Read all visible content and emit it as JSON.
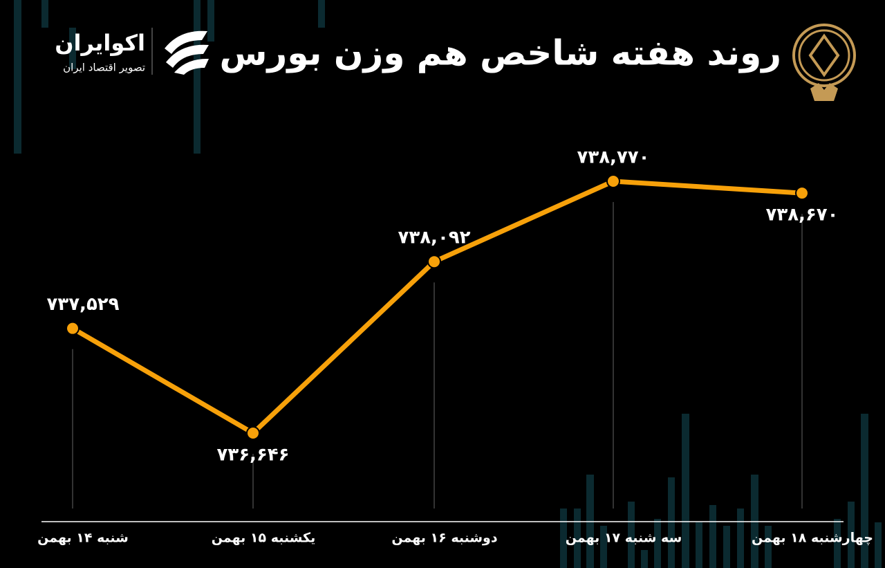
{
  "header": {
    "title": "روند هفته شاخص هم وزن بورس",
    "brand": "اکوایران",
    "tagline": "تصویر اقتصاد ایران"
  },
  "chart_data": {
    "type": "line",
    "categories": [
      "شنبه ۱۴ بهمن",
      "یکشنبه ۱۵ بهمن",
      "دوشنبه ۱۶ بهمن",
      "سه شنبه ۱۷ بهمن",
      "چهارشنبه ۱۸ بهمن"
    ],
    "values": [
      737529,
      736646,
      738092,
      738770,
      738670
    ],
    "value_labels": [
      "۷۳۷,۵۲۹",
      "۷۳۶,۶۴۶",
      "۷۳۸,۰۹۲",
      "۷۳۸,۷۷۰",
      "۷۳۸,۶۷۰"
    ],
    "color": "#f7a10a"
  }
}
